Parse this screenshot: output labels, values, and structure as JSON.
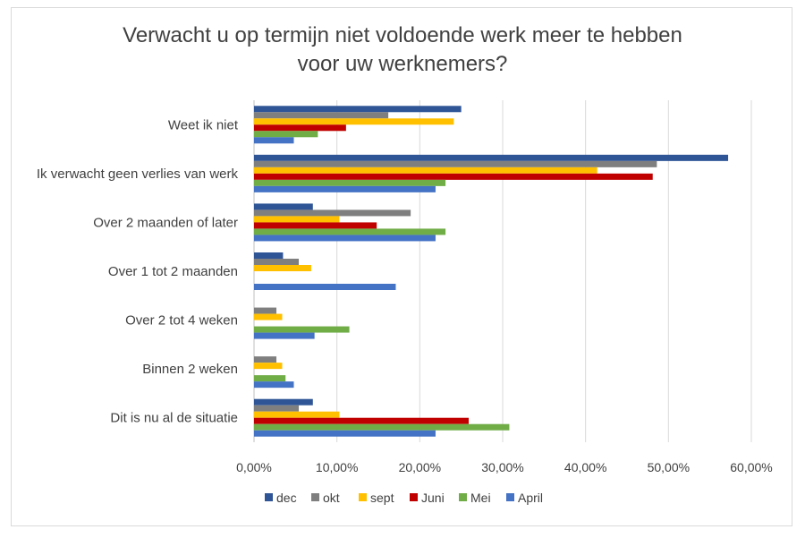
{
  "chart_data": {
    "type": "bar",
    "orientation": "horizontal",
    "title_lines": [
      "Verwacht u op termijn niet voldoende werk meer te hebben",
      "voor uw werknemers?"
    ],
    "categories": [
      "Weet ik niet",
      "Ik verwacht geen verlies van werk",
      "Over 2 maanden of later",
      "Over 1 tot 2 maanden",
      "Over 2 tot 4 weken",
      "Binnen 2 weken",
      "Dit is nu al de situatie"
    ],
    "series": [
      {
        "name": "dec",
        "color": "#2F5597",
        "values": [
          25.0,
          57.2,
          7.1,
          3.5,
          0.0,
          0.0,
          7.1
        ]
      },
      {
        "name": "okt",
        "color": "#7F7F7F",
        "values": [
          16.2,
          48.6,
          18.9,
          5.4,
          2.7,
          2.7,
          5.4
        ]
      },
      {
        "name": "sept",
        "color": "#FFC000",
        "values": [
          24.1,
          41.4,
          10.3,
          6.9,
          3.4,
          3.4,
          10.3
        ]
      },
      {
        "name": "Juni",
        "color": "#C00000",
        "values": [
          11.1,
          48.1,
          14.8,
          0.0,
          0.0,
          0.0,
          25.9
        ]
      },
      {
        "name": "Mei",
        "color": "#70AD47",
        "values": [
          7.7,
          23.1,
          23.1,
          0.0,
          11.5,
          3.8,
          30.8
        ]
      },
      {
        "name": "April",
        "color": "#4472C4",
        "values": [
          4.8,
          21.9,
          21.9,
          17.1,
          7.3,
          4.8,
          21.9
        ]
      }
    ],
    "xlim": [
      0,
      60
    ],
    "xticks": [
      "0,00%",
      "10,00%",
      "20,00%",
      "30,00%",
      "40,00%",
      "50,00%",
      "60,00%"
    ],
    "xtick_values": [
      0,
      10,
      20,
      30,
      40,
      50,
      60
    ],
    "grid": true,
    "legend_position": "bottom"
  }
}
